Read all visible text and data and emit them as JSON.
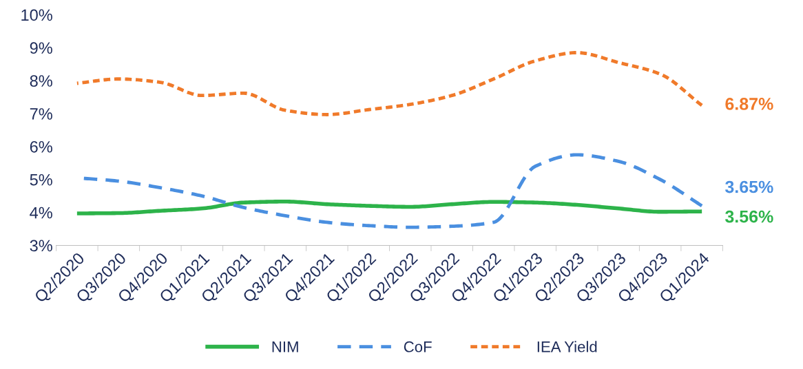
{
  "chart_data": {
    "type": "line",
    "categories": [
      "Q2/2020",
      "Q3/2020",
      "Q4/2020",
      "Q1/2021",
      "Q2/2021",
      "Q3/2021",
      "Q4/2021",
      "Q1/2022",
      "Q2/2022",
      "Q3/2022",
      "Q4/2022",
      "Q1/2023",
      "Q2/2023",
      "Q3/2023",
      "Q4/2023",
      "Q1/2024"
    ],
    "series": [
      {
        "name": "NIM",
        "color": "#2db34a",
        "line_style": "solid",
        "values": [
          3.97,
          3.98,
          4.05,
          4.12,
          4.3,
          4.33,
          4.25,
          4.2,
          4.17,
          4.25,
          4.32,
          4.3,
          4.23,
          4.12,
          4.02,
          4.03
        ]
      },
      {
        "name": "CoF",
        "color": "#4a8fe0",
        "line_style": "dashed",
        "values": [
          5.05,
          4.95,
          4.75,
          4.5,
          4.15,
          3.9,
          3.7,
          3.6,
          3.55,
          3.58,
          3.7,
          5.4,
          5.75,
          5.55,
          5.0,
          4.2
        ]
      },
      {
        "name": "IEA Yield",
        "color": "#f07a2a",
        "line_style": "dotted",
        "values": [
          7.92,
          8.05,
          7.95,
          7.55,
          7.62,
          7.1,
          6.97,
          7.12,
          7.28,
          7.55,
          8.05,
          8.6,
          8.85,
          8.55,
          8.2,
          7.25
        ]
      }
    ],
    "annotations": [
      {
        "text": "3.56%",
        "x": "Q1/2024",
        "y": 4.03
      },
      {
        "text": "3.65%",
        "x": "Q1/2024",
        "y": 4.2
      },
      {
        "text": "6.87%",
        "x": "Q1/2024",
        "y": 7.25
      }
    ],
    "ylim": [
      3,
      10
    ],
    "yticks": [
      {
        "value": 3,
        "label": "3%"
      },
      {
        "value": 4,
        "label": "4%"
      },
      {
        "value": 5,
        "label": "5%"
      },
      {
        "value": 6,
        "label": "6%"
      },
      {
        "value": 7,
        "label": "7%"
      },
      {
        "value": 8,
        "label": "8%"
      },
      {
        "value": 9,
        "label": "9%"
      },
      {
        "value": 10,
        "label": "10%"
      }
    ],
    "grid": false,
    "legend": "bottom"
  }
}
